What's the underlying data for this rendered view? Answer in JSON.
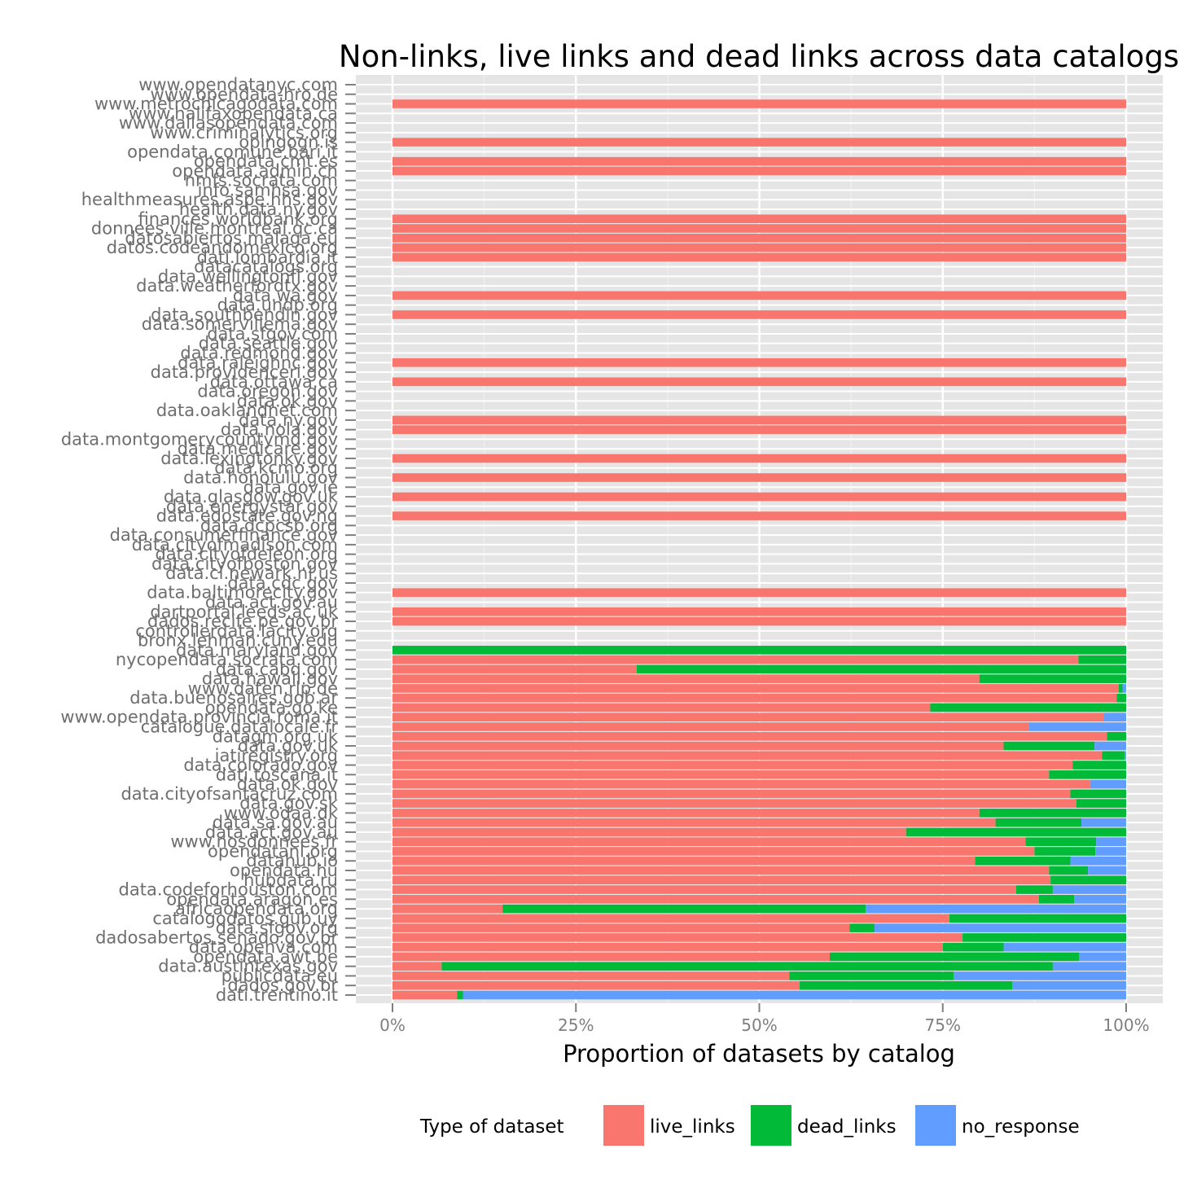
{
  "chart_data": {
    "type": "bar",
    "orientation": "horizontal",
    "stacked": "fill",
    "title": "Non-links, live links and dead links across data catalogs",
    "xlabel": "Proportion of datasets by catalog",
    "ylabel": "",
    "xlim": [
      0,
      1
    ],
    "x_ticks": [
      "0%",
      "25%",
      "50%",
      "75%",
      "100%"
    ],
    "x_tick_values": [
      0,
      0.25,
      0.5,
      0.75,
      1
    ],
    "grid": true,
    "legend": {
      "title": "Type of dataset",
      "placement": "bottom",
      "entries": [
        "live_links",
        "dead_links",
        "no_response"
      ]
    },
    "colors": {
      "live_links": "#F8766D",
      "dead_links": "#00BA38",
      "no_response": "#619CFF",
      "panel": "#E5E5E5",
      "grid": "#FFFFFF"
    },
    "series_names": [
      "live_links",
      "dead_links",
      "no_response"
    ],
    "rows": [
      {
        "label": "www.opendatanyc.com",
        "values": [
          0,
          0,
          0
        ]
      },
      {
        "label": "www.opendata-hro.de",
        "values": [
          0,
          0,
          0
        ]
      },
      {
        "label": "www.metrochicagodata.com",
        "values": [
          1,
          0,
          0
        ]
      },
      {
        "label": "www.halifaxopendata.ca",
        "values": [
          0,
          0,
          0
        ]
      },
      {
        "label": "www.dallasopendata.com",
        "values": [
          0,
          0,
          0
        ]
      },
      {
        "label": "www.criminalytics.org",
        "values": [
          0,
          0,
          0
        ]
      },
      {
        "label": "opingogn.is",
        "values": [
          1,
          0,
          0
        ]
      },
      {
        "label": "opendata.comune.bari.it",
        "values": [
          0,
          0,
          0
        ]
      },
      {
        "label": "opendata.cmt.es",
        "values": [
          1,
          0,
          0
        ]
      },
      {
        "label": "opendata.admin.ch",
        "values": [
          1,
          0,
          0
        ]
      },
      {
        "label": "nmfs.socrata.com",
        "values": [
          0,
          0,
          0
        ]
      },
      {
        "label": "info.samhsa.gov",
        "values": [
          0,
          0,
          0
        ]
      },
      {
        "label": "healthmeasures.aspe.hhs.gov",
        "values": [
          0,
          0,
          0
        ]
      },
      {
        "label": "health.data.ny.gov",
        "values": [
          0,
          0,
          0
        ]
      },
      {
        "label": "finances.worldbank.org",
        "values": [
          1,
          0,
          0
        ]
      },
      {
        "label": "donnees.ville.montreal.qc.ca",
        "values": [
          1,
          0,
          0
        ]
      },
      {
        "label": "datosabiertos.malaga.eu",
        "values": [
          1,
          0,
          0
        ]
      },
      {
        "label": "datos.codeandomexico.org",
        "values": [
          1,
          0,
          0
        ]
      },
      {
        "label": "dati.lombardia.it",
        "values": [
          1,
          0,
          0
        ]
      },
      {
        "label": "datacatalogs.org",
        "values": [
          0,
          0,
          0
        ]
      },
      {
        "label": "data.wellingtonfl.gov",
        "values": [
          0,
          0,
          0
        ]
      },
      {
        "label": "data.weatherfordtx.gov",
        "values": [
          0,
          0,
          0
        ]
      },
      {
        "label": "data.wa.gov",
        "values": [
          1,
          0,
          0
        ]
      },
      {
        "label": "data.undp.org",
        "values": [
          0,
          0,
          0
        ]
      },
      {
        "label": "data.southbendin.gov",
        "values": [
          1,
          0,
          0
        ]
      },
      {
        "label": "data.somervillema.gov",
        "values": [
          0,
          0,
          0
        ]
      },
      {
        "label": "data.sfgov.com",
        "values": [
          0,
          0,
          0
        ]
      },
      {
        "label": "data.seattle.gov",
        "values": [
          0,
          0,
          0
        ]
      },
      {
        "label": "data.redmond.gov",
        "values": [
          0,
          0,
          0
        ]
      },
      {
        "label": "data.raleighnc.gov",
        "values": [
          1,
          0,
          0
        ]
      },
      {
        "label": "data.providenceri.gov",
        "values": [
          0,
          0,
          0
        ]
      },
      {
        "label": "data.ottawa.ca",
        "values": [
          1,
          0,
          0
        ]
      },
      {
        "label": "data.oregon.gov",
        "values": [
          0,
          0,
          0
        ]
      },
      {
        "label": "data.ok.gov",
        "values": [
          0,
          0,
          0
        ]
      },
      {
        "label": "data.oaklandnet.com",
        "values": [
          0,
          0,
          0
        ]
      },
      {
        "label": "data.ny.gov",
        "values": [
          1,
          0,
          0
        ]
      },
      {
        "label": "data.nola.gov",
        "values": [
          1,
          0,
          0
        ]
      },
      {
        "label": "data.montgomerycountymd.gov",
        "values": [
          0,
          0,
          0
        ]
      },
      {
        "label": "data.medicare.gov",
        "values": [
          0,
          0,
          0
        ]
      },
      {
        "label": "data.lexingtonky.gov",
        "values": [
          1,
          0,
          0
        ]
      },
      {
        "label": "data.kcmo.org",
        "values": [
          0,
          0,
          0
        ]
      },
      {
        "label": "data.honolulu.gov",
        "values": [
          1,
          0,
          0
        ]
      },
      {
        "label": "data.gov.ie",
        "values": [
          0,
          0,
          0
        ]
      },
      {
        "label": "data.glasgow.gov.uk",
        "values": [
          1,
          0,
          0
        ]
      },
      {
        "label": "data.energystar.gov",
        "values": [
          0,
          0,
          0
        ]
      },
      {
        "label": "data.edostate.gov.ng",
        "values": [
          1,
          0,
          0
        ]
      },
      {
        "label": "data.dcpcsb.org",
        "values": [
          0,
          0,
          0
        ]
      },
      {
        "label": "data.consumerfinance.gov",
        "values": [
          0,
          0,
          0
        ]
      },
      {
        "label": "data.cityofmadison.com",
        "values": [
          0,
          0,
          0
        ]
      },
      {
        "label": "data.cityofdeleon.org",
        "values": [
          0,
          0,
          0
        ]
      },
      {
        "label": "data.cityofboston.gov",
        "values": [
          0,
          0,
          0
        ]
      },
      {
        "label": "data.ci.newark.nj.us",
        "values": [
          0,
          0,
          0
        ]
      },
      {
        "label": "data.cdc.gov",
        "values": [
          0,
          0,
          0
        ]
      },
      {
        "label": "data.baltimorecity.gov",
        "values": [
          1,
          0,
          0
        ]
      },
      {
        "label": "data.act.gov.au",
        "values": [
          0,
          0,
          0
        ]
      },
      {
        "label": "dartportal.leeds.ac.uk",
        "values": [
          1,
          0,
          0
        ]
      },
      {
        "label": "dados.recife.pe.gov.br",
        "values": [
          1,
          0,
          0
        ]
      },
      {
        "label": "controllerdata.lacity.org",
        "values": [
          0,
          0,
          0
        ]
      },
      {
        "label": "bronx.lehman.cuny.edu",
        "values": [
          0,
          0,
          0
        ]
      },
      {
        "label": "data.maryland.gov",
        "values": [
          0,
          1,
          0
        ]
      },
      {
        "label": "nycopendata.socrata.com",
        "values": [
          0.935,
          0.065,
          0
        ]
      },
      {
        "label": "data.cabq.gov",
        "values": [
          0.333,
          0.667,
          0
        ]
      },
      {
        "label": "data.hawaii.gov",
        "values": [
          0.8,
          0.2,
          0
        ]
      },
      {
        "label": "www.daten.rlp.de",
        "values": [
          0.99,
          0.005,
          0.005
        ]
      },
      {
        "label": "data.buenosaires.gob.ar",
        "values": [
          0.987,
          0.013,
          0
        ]
      },
      {
        "label": "opendata.go.ke",
        "values": [
          0.733,
          0.267,
          0
        ]
      },
      {
        "label": "www.opendata.provincia.roma.it",
        "values": [
          0.97,
          0,
          0.03
        ]
      },
      {
        "label": "catalogue.datalocale.fr",
        "values": [
          0.867,
          0,
          0.133
        ]
      },
      {
        "label": "datagm.org.uk",
        "values": [
          0.974,
          0.026,
          0
        ]
      },
      {
        "label": "data.gov.uk",
        "values": [
          0.833,
          0.124,
          0.043
        ]
      },
      {
        "label": "iatiregistry.org",
        "values": [
          0.967,
          0.031,
          0.002
        ]
      },
      {
        "label": "data.colorado.gov",
        "values": [
          0.927,
          0.073,
          0
        ]
      },
      {
        "label": "dati.toscana.it",
        "values": [
          0.895,
          0.105,
          0
        ]
      },
      {
        "label": "data.ok.gov",
        "values": [
          0.951,
          0,
          0.049
        ]
      },
      {
        "label": "data.cityofsantacruz.com",
        "values": [
          0.924,
          0.076,
          0
        ]
      },
      {
        "label": "data.gov.sk",
        "values": [
          0.932,
          0.068,
          0
        ]
      },
      {
        "label": "www.odaa.dk",
        "values": [
          0.8,
          0.2,
          0
        ]
      },
      {
        "label": "data.sa.gov.au",
        "values": [
          0.822,
          0.117,
          0.061
        ]
      },
      {
        "label": "data.act.gov.au",
        "values": [
          0.7,
          0.3,
          0
        ]
      },
      {
        "label": "www.nosdonnees.fr",
        "values": [
          0.863,
          0.096,
          0.041
        ]
      },
      {
        "label": "opendatanl.org",
        "values": [
          0.875,
          0.083,
          0.042
        ]
      },
      {
        "label": "datahub.io",
        "values": [
          0.794,
          0.13,
          0.076
        ]
      },
      {
        "label": "opendata.hu",
        "values": [
          0.895,
          0.053,
          0.052
        ]
      },
      {
        "label": "hubdata.ru",
        "values": [
          0.897,
          0.103,
          0
        ]
      },
      {
        "label": "data.codeforhouston.com",
        "values": [
          0.85,
          0.05,
          0.1
        ]
      },
      {
        "label": "opendata.aragon.es",
        "values": [
          0.881,
          0.048,
          0.071
        ]
      },
      {
        "label": "africaopendata.org",
        "values": [
          0.15,
          0.495,
          0.355
        ]
      },
      {
        "label": "catalogodatos.gub.uy",
        "values": [
          0.759,
          0.241,
          0
        ]
      },
      {
        "label": "data.sfgov.org",
        "values": [
          0.623,
          0.034,
          0.343
        ]
      },
      {
        "label": "dadosabertos.senado.gov.br",
        "values": [
          0.777,
          0.223,
          0
        ]
      },
      {
        "label": "data.openva.com",
        "values": [
          0.75,
          0.083,
          0.167
        ]
      },
      {
        "label": "opendata.awt.be",
        "values": [
          0.596,
          0.34,
          0.064
        ]
      },
      {
        "label": "data.austintexas.gov",
        "values": [
          0.067,
          0.833,
          0.1
        ]
      },
      {
        "label": "publicdata.eu",
        "values": [
          0.541,
          0.224,
          0.235
        ]
      },
      {
        "label": "dados.gov.br",
        "values": [
          0.555,
          0.29,
          0.155
        ]
      },
      {
        "label": "dati.trentino.it",
        "values": [
          0.088,
          0.008,
          0.904
        ]
      }
    ]
  }
}
